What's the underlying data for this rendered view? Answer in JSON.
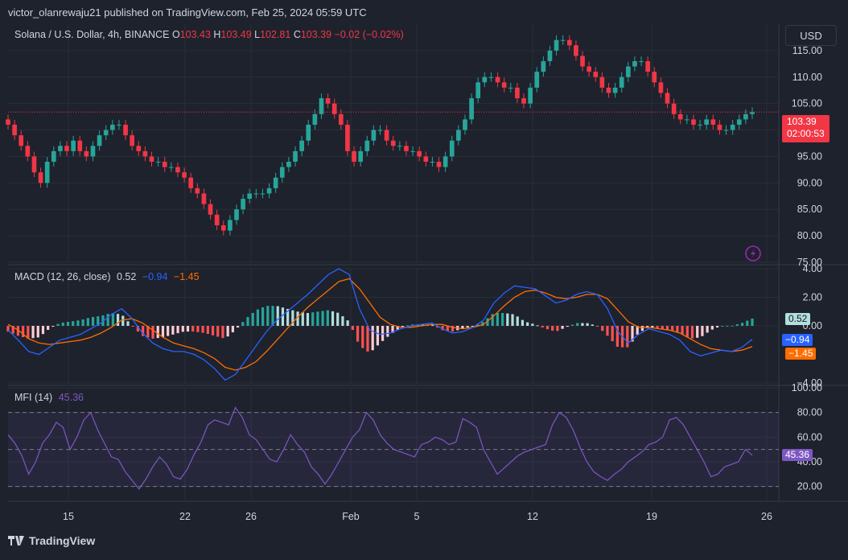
{
  "header": {
    "publisher": "victor_olanrewaju21 published on TradingView.com, Feb 25, 2024 05:59 UTC"
  },
  "symbol": {
    "title": "Solana / U.S. Dollar, 4h, BINANCE",
    "o_label": "O",
    "o": "103.43",
    "h_label": "H",
    "h": "103.49",
    "l_label": "L",
    "l": "102.81",
    "c_label": "C",
    "c": "103.39",
    "change": "−0.02 (−0.02%)"
  },
  "currency_button": "USD",
  "price_tag": {
    "price": "103.39",
    "countdown": "02:00:53"
  },
  "macd": {
    "label": "MACD (12, 26, close)",
    "hist": "0.52",
    "macd": "−0.94",
    "signal": "−1.45"
  },
  "mfi": {
    "label": "MFI (14)",
    "value": "45.36"
  },
  "branding": "TradingView",
  "colors": {
    "up": "#26a69a",
    "down": "#f23645",
    "macd_line": "#2962ff",
    "signal_line": "#ff6d00",
    "mfi_line": "#7e57c2",
    "background": "#1e222d",
    "grid": "#2a2e39"
  },
  "chart_data": [
    {
      "type": "line",
      "title": "Solana / U.S. Dollar, 4h, BINANCE",
      "series": [
        {
          "values": [
            101,
            99,
            97,
            95,
            92,
            90,
            94,
            96,
            97,
            96,
            98,
            96,
            95,
            97,
            99,
            100,
            101,
            101,
            99,
            97,
            96,
            95,
            94,
            94,
            93,
            93,
            92,
            91,
            89,
            88,
            86,
            84,
            82,
            81,
            83,
            85,
            87,
            88,
            88,
            88,
            89,
            91,
            93,
            94,
            96,
            98,
            101,
            103,
            106,
            105,
            103,
            101,
            96,
            94,
            96,
            98,
            100,
            100,
            98,
            97,
            97,
            96,
            96,
            95,
            94,
            94,
            93,
            95,
            98,
            100,
            102,
            106,
            109,
            110,
            110,
            109,
            108,
            108,
            106,
            105,
            108,
            111,
            113,
            115,
            117,
            117,
            116,
            114,
            112,
            111,
            110,
            108,
            107,
            108,
            110,
            112,
            113,
            113,
            111,
            109,
            107,
            105,
            103,
            102,
            102,
            101,
            101,
            102,
            101,
            100,
            100,
            101,
            102,
            103,
            103.39
          ]
        }
      ],
      "x_ticks": [
        "15",
        "22",
        "26",
        "Feb",
        "5",
        "12",
        "19",
        "26"
      ],
      "y_ticks": [
        "75.00",
        "80.00",
        "85.00",
        "90.00",
        "95.00",
        "100.00",
        "105.00",
        "110.00",
        "115.00"
      ],
      "ylim": [
        75,
        120
      ]
    },
    {
      "type": "line",
      "title": "MACD (12, 26, close)",
      "series": [
        {
          "name": "MACD",
          "values": [
            -0.3,
            -1,
            -1.8,
            -2,
            -1.5,
            -1,
            -0.8,
            -0.6,
            -0.2,
            0.2,
            0.8,
            1.2,
            0.5,
            -0.5,
            -1.2,
            -1.6,
            -1.8,
            -1.8,
            -2,
            -2.4,
            -3,
            -3.8,
            -3.4,
            -2.4,
            -1.4,
            -0.4,
            0.4,
            1,
            1.6,
            2.2,
            2.9,
            3.6,
            4,
            3.6,
            1.2,
            -0.3,
            -0.6,
            -0.5,
            -0.2,
            0,
            0.1,
            0.2,
            -0.2,
            -0.5,
            -0.4,
            -0.1,
            0.4,
            1.6,
            2.3,
            2.8,
            2.7,
            2.6,
            2.1,
            1.6,
            1.8,
            2.2,
            2.4,
            2.2,
            1.2,
            -0.4,
            -1.2,
            -0.6,
            -0.2,
            -0.4,
            -0.6,
            -1,
            -1.8,
            -2.1,
            -1.9,
            -1.7,
            -1.8,
            -1.5,
            -0.94
          ]
        },
        {
          "name": "Signal",
          "values": [
            0.1,
            -0.3,
            -0.9,
            -1.2,
            -1.3,
            -1.2,
            -1.1,
            -1,
            -0.8,
            -0.5,
            -0.1,
            0.4,
            0.5,
            0.2,
            -0.3,
            -0.8,
            -1.2,
            -1.4,
            -1.6,
            -1.9,
            -2.3,
            -2.9,
            -3.1,
            -2.9,
            -2.5,
            -1.8,
            -1,
            -0.2,
            0.6,
            1.3,
            1.9,
            2.5,
            3.1,
            3.3,
            2.6,
            1.6,
            0.6,
            0.1,
            -0.1,
            -0.1,
            0,
            0.1,
            0.1,
            -0.1,
            -0.2,
            -0.1,
            0.1,
            0.7,
            1.4,
            2,
            2.4,
            2.5,
            2.3,
            2,
            1.9,
            2,
            2.2,
            2.2,
            1.9,
            1.1,
            0.3,
            -0.1,
            -0.1,
            -0.2,
            -0.3,
            -0.5,
            -0.9,
            -1.3,
            -1.6,
            -1.7,
            -1.8,
            -1.7,
            -1.45
          ]
        }
      ],
      "y_ticks": [
        "−4.00",
        "0.00",
        "2.00",
        "4.00"
      ],
      "ylim": [
        -4,
        4
      ]
    },
    {
      "type": "line",
      "title": "MFI (14)",
      "series": [
        {
          "values": [
            62,
            55,
            45,
            30,
            40,
            55,
            62,
            72,
            68,
            50,
            60,
            74,
            80,
            66,
            55,
            44,
            42,
            32,
            25,
            18,
            26,
            36,
            44,
            38,
            28,
            26,
            34,
            46,
            56,
            70,
            74,
            72,
            70,
            84,
            76,
            62,
            58,
            50,
            42,
            40,
            50,
            62,
            54,
            48,
            36,
            30,
            22,
            30,
            40,
            50,
            60,
            66,
            80,
            74,
            62,
            55,
            50,
            48,
            46,
            44,
            54,
            56,
            60,
            58,
            54,
            56,
            75,
            72,
            68,
            50,
            40,
            30,
            35,
            40,
            45,
            48,
            50,
            52,
            54,
            70,
            80,
            76,
            66,
            52,
            40,
            32,
            28,
            25,
            30,
            34,
            40,
            44,
            48,
            54,
            56,
            60,
            74,
            76,
            70,
            60,
            50,
            40,
            28,
            30,
            36,
            38,
            40,
            50,
            45.36
          ]
        }
      ],
      "y_ticks": [
        "20.00",
        "40.00",
        "60.00",
        "80.00",
        "100.00"
      ],
      "ylim": [
        10,
        100
      ],
      "band": [
        20,
        80
      ]
    }
  ]
}
